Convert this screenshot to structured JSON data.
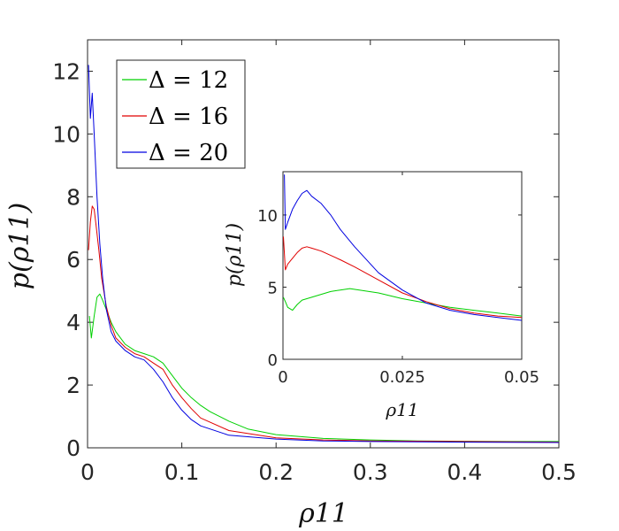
{
  "chart_data": [
    {
      "type": "line",
      "title": "",
      "xlabel": "ρ11",
      "ylabel": "p(ρ11)",
      "xlim": [
        0,
        0.5
      ],
      "ylim": [
        0,
        13
      ],
      "xticks": [
        "0",
        "0.1",
        "0.2",
        "0.3",
        "0.4",
        "0.5"
      ],
      "yticks": [
        "0",
        "2",
        "4",
        "6",
        "8",
        "10",
        "12"
      ],
      "legend_position": "top-left",
      "series": [
        {
          "name": "Δ = 12",
          "color": "#00d000",
          "x": [
            0.002,
            0.004,
            0.007,
            0.01,
            0.013,
            0.016,
            0.02,
            0.025,
            0.03,
            0.035,
            0.04,
            0.05,
            0.06,
            0.07,
            0.08,
            0.09,
            0.1,
            0.11,
            0.12,
            0.13,
            0.15,
            0.17,
            0.2,
            0.25,
            0.3,
            0.35,
            0.4,
            0.45,
            0.5
          ],
          "values": [
            4.2,
            3.5,
            4.2,
            4.8,
            4.9,
            4.7,
            4.4,
            4.0,
            3.7,
            3.5,
            3.3,
            3.1,
            3.0,
            2.9,
            2.7,
            2.3,
            1.9,
            1.6,
            1.35,
            1.15,
            0.85,
            0.6,
            0.42,
            0.3,
            0.25,
            0.22,
            0.21,
            0.2,
            0.2
          ]
        },
        {
          "name": "Δ = 16",
          "color": "#e00000",
          "x": [
            0.001,
            0.003,
            0.005,
            0.007,
            0.009,
            0.012,
            0.015,
            0.02,
            0.025,
            0.03,
            0.04,
            0.05,
            0.06,
            0.07,
            0.08,
            0.09,
            0.1,
            0.11,
            0.12,
            0.15,
            0.2,
            0.25,
            0.3,
            0.4,
            0.5
          ],
          "values": [
            6.3,
            7.2,
            7.7,
            7.6,
            7.1,
            6.3,
            5.4,
            4.5,
            3.9,
            3.5,
            3.2,
            3.0,
            2.9,
            2.7,
            2.5,
            2.0,
            1.6,
            1.25,
            0.95,
            0.55,
            0.32,
            0.25,
            0.22,
            0.2,
            0.18
          ]
        },
        {
          "name": "Δ = 20",
          "color": "#0000e0",
          "x": [
            0.001,
            0.003,
            0.005,
            0.007,
            0.01,
            0.013,
            0.016,
            0.02,
            0.025,
            0.03,
            0.04,
            0.05,
            0.06,
            0.07,
            0.08,
            0.09,
            0.1,
            0.11,
            0.12,
            0.15,
            0.2,
            0.25,
            0.3,
            0.4,
            0.5
          ],
          "values": [
            12.2,
            10.5,
            11.3,
            10.0,
            8.0,
            6.5,
            5.4,
            4.4,
            3.7,
            3.4,
            3.1,
            2.9,
            2.8,
            2.5,
            2.1,
            1.6,
            1.2,
            0.9,
            0.7,
            0.4,
            0.28,
            0.22,
            0.2,
            0.18,
            0.17
          ]
        }
      ]
    },
    {
      "type": "line",
      "title": "",
      "xlabel": "ρ11",
      "ylabel": "p(ρ11)",
      "xlim": [
        0,
        0.05
      ],
      "ylim": [
        0,
        13
      ],
      "xticks": [
        "0",
        "0.025",
        "0.05"
      ],
      "yticks": [
        "0",
        "5",
        "10"
      ],
      "series": [
        {
          "name": "Δ = 12",
          "color": "#00d000",
          "x": [
            0.0001,
            0.0005,
            0.001,
            0.002,
            0.003,
            0.004,
            0.006,
            0.008,
            0.01,
            0.012,
            0.014,
            0.016,
            0.02,
            0.025,
            0.03,
            0.035,
            0.04,
            0.045,
            0.05
          ],
          "values": [
            4.3,
            4.0,
            3.6,
            3.4,
            3.8,
            4.1,
            4.3,
            4.5,
            4.7,
            4.8,
            4.9,
            4.8,
            4.6,
            4.2,
            3.9,
            3.6,
            3.4,
            3.2,
            3.0
          ]
        },
        {
          "name": "Δ = 16",
          "color": "#e00000",
          "x": [
            0.0001,
            0.0005,
            0.001,
            0.002,
            0.003,
            0.004,
            0.005,
            0.006,
            0.008,
            0.01,
            0.012,
            0.015,
            0.02,
            0.025,
            0.03,
            0.035,
            0.04,
            0.045,
            0.05
          ],
          "values": [
            8.5,
            6.2,
            6.6,
            7.0,
            7.4,
            7.7,
            7.8,
            7.7,
            7.5,
            7.2,
            6.9,
            6.4,
            5.5,
            4.6,
            4.0,
            3.5,
            3.2,
            3.0,
            2.9
          ]
        },
        {
          "name": "Δ = 20",
          "color": "#0000e0",
          "x": [
            0.0003,
            0.0005,
            0.001,
            0.002,
            0.003,
            0.004,
            0.005,
            0.006,
            0.008,
            0.01,
            0.012,
            0.015,
            0.02,
            0.025,
            0.03,
            0.035,
            0.04,
            0.045,
            0.05
          ],
          "values": [
            12.8,
            9.0,
            9.5,
            10.4,
            11.0,
            11.5,
            11.7,
            11.3,
            10.8,
            10.0,
            9.0,
            7.8,
            6.0,
            4.8,
            3.9,
            3.4,
            3.1,
            2.9,
            2.7
          ]
        }
      ]
    }
  ]
}
